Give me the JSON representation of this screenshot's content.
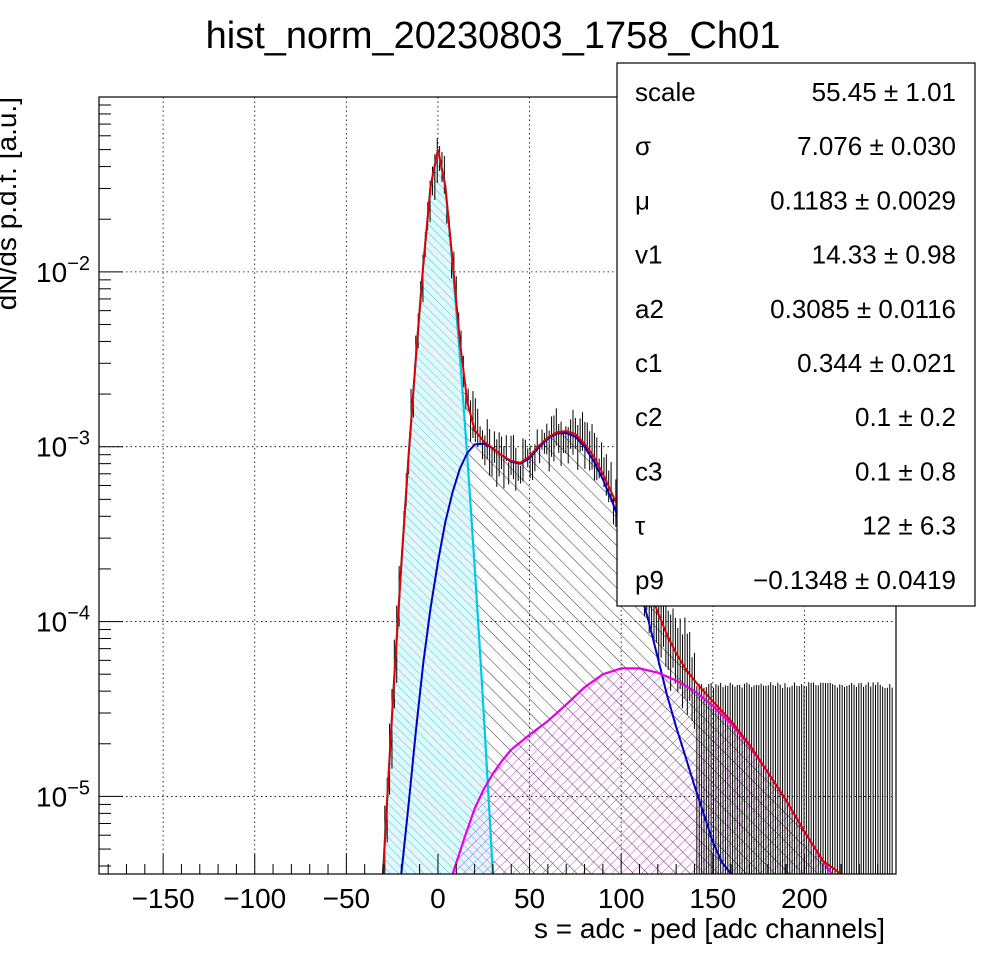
{
  "chart_data": {
    "type": "line",
    "title": "hist_norm_20230803_1758_Ch01",
    "xlabel": "s = adc - ped [adc channels]",
    "ylabel": "dN/ds p.d.f. [a.u.]",
    "y_scale": "log",
    "xlim": [
      -185,
      250
    ],
    "ylim": [
      3.6e-06,
      0.1
    ],
    "grid": true,
    "x_ticks": [
      -150,
      -100,
      -50,
      0,
      50,
      100,
      150,
      200
    ],
    "x_tick_labels": [
      "−150",
      "−100",
      "−50",
      "0",
      "50",
      "100",
      "150",
      "200"
    ],
    "y_ticks": [
      1e-05,
      0.0001,
      0.001,
      0.01
    ],
    "y_tick_labels": [
      {
        "base": "10",
        "exp": "−5"
      },
      {
        "base": "10",
        "exp": "−4"
      },
      {
        "base": "10",
        "exp": "−3"
      },
      {
        "base": "10",
        "exp": "−2"
      }
    ],
    "colors": {
      "total": "#e00000",
      "pedestal": "#00c8e6",
      "one_pe": "#0000c8",
      "two_pe": "#e600e6",
      "data": "#000000"
    },
    "series": [
      {
        "key": "pedestal",
        "x": [
          -30,
          -27,
          -24,
          -20,
          -16,
          -12,
          -8,
          -4,
          0,
          4,
          8,
          12,
          16,
          20,
          24,
          27,
          30
        ],
        "y": [
          3.6e-06,
          1.3e-05,
          4.5e-05,
          0.00021,
          0.00088,
          0.0033,
          0.011,
          0.031,
          0.05,
          0.031,
          0.011,
          0.0033,
          0.00088,
          0.00021,
          4.5e-05,
          1.3e-05,
          3.6e-06
        ]
      },
      {
        "key": "one_pe",
        "x": [
          -20,
          -16,
          -12,
          -8,
          -4,
          0,
          4,
          8,
          12,
          16,
          20,
          25,
          30,
          35,
          40,
          45,
          50,
          55,
          60,
          65,
          70,
          75,
          80,
          85,
          90,
          95,
          100,
          105,
          110,
          115,
          120,
          125,
          130,
          135,
          140,
          145,
          150,
          155,
          160
        ],
        "y": [
          3.6e-06,
          9e-06,
          2.4e-05,
          5.8e-05,
          0.00012,
          0.00022,
          0.00037,
          0.00055,
          0.00075,
          0.00092,
          0.00103,
          0.00104,
          0.00098,
          0.00089,
          0.00082,
          0.0008,
          0.00086,
          0.00099,
          0.00111,
          0.00119,
          0.0012,
          0.00114,
          0.001,
          0.00083,
          0.00065,
          0.00049,
          0.00035,
          0.00024,
          0.000155,
          0.0001,
          6.2e-05,
          3.8e-05,
          2.5e-05,
          1.7e-05,
          1.15e-05,
          8e-06,
          5.5e-06,
          4.2e-06,
          3.6e-06
        ]
      },
      {
        "key": "two_pe",
        "x": [
          8,
          15,
          20,
          25,
          30,
          35,
          40,
          50,
          60,
          70,
          80,
          90,
          100,
          110,
          120,
          130,
          140,
          150,
          160,
          170,
          180,
          190,
          200,
          210,
          215
        ],
        "y": [
          3.6e-06,
          6e-06,
          8.5e-06,
          1.1e-05,
          1.35e-05,
          1.6e-05,
          1.85e-05,
          2.25e-05,
          2.7e-05,
          3.35e-05,
          4.2e-05,
          5e-05,
          5.4e-05,
          5.4e-05,
          5.1e-05,
          4.6e-05,
          4e-05,
          3.3e-05,
          2.6e-05,
          1.95e-05,
          1.38e-05,
          9.5e-06,
          6.3e-06,
          4.3e-06,
          3.6e-06
        ]
      },
      {
        "key": "total",
        "x": [
          -30,
          -27,
          -24,
          -20,
          -16,
          -12,
          -8,
          -4,
          0,
          4,
          8,
          12,
          16,
          20,
          25,
          30,
          35,
          40,
          45,
          50,
          55,
          60,
          65,
          70,
          75,
          80,
          85,
          90,
          95,
          100,
          105,
          110,
          115,
          120,
          125,
          130,
          135,
          140,
          145,
          150,
          160,
          170,
          180,
          190,
          200,
          210,
          220,
          224
        ],
        "y": [
          3.6e-06,
          1.3e-05,
          4.5e-05,
          0.00021,
          0.00089,
          0.0033,
          0.011,
          0.031,
          0.05,
          0.031,
          0.0115,
          0.004,
          0.0018,
          0.00125,
          0.00107,
          0.00098,
          0.00089,
          0.00083,
          0.00081,
          0.00088,
          0.00101,
          0.00113,
          0.00121,
          0.00123,
          0.00118,
          0.00104,
          0.00088,
          0.0007,
          0.00054,
          0.00041,
          0.0003,
          0.00021,
          0.000155,
          0.000113,
          8.4e-05,
          6.6e-05,
          5.4e-05,
          4.6e-05,
          4e-05,
          3.5e-05,
          2.7e-05,
          1.98e-05,
          1.38e-05,
          9.5e-06,
          6.3e-06,
          4.3e-06,
          3.6e-06,
          3.3e-06
        ]
      }
    ]
  },
  "stats_box": {
    "rows": [
      {
        "name": "scale",
        "value": "55.45 ± 1.01"
      },
      {
        "name": "σ",
        "value": "7.076 ± 0.030"
      },
      {
        "name": "μ",
        "value": "0.1183 ± 0.0029"
      },
      {
        "name": "v1",
        "value": "14.33 ± 0.98"
      },
      {
        "name": "a2",
        "value": "0.3085 ± 0.0116"
      },
      {
        "name": "c1",
        "value": "0.344 ± 0.021"
      },
      {
        "name": "c2",
        "value": "0.1 ± 0.2"
      },
      {
        "name": "c3",
        "value": "0.1 ± 0.8"
      },
      {
        "name": "τ",
        "value": "12 ± 6.3"
      },
      {
        "name": "p9",
        "value": "−0.1348 ± 0.0419"
      }
    ]
  }
}
